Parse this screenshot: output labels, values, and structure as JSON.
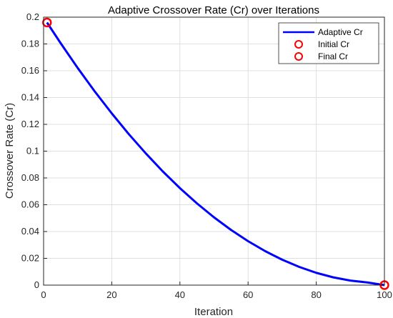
{
  "chart_data": {
    "type": "line",
    "title": "Adaptive Crossover Rate (Cr) over Iterations",
    "xlabel": "Iteration",
    "ylabel": "Crossover Rate (Cr)",
    "xlim": [
      0,
      100
    ],
    "ylim": [
      0,
      0.2
    ],
    "xticks": [
      0,
      20,
      40,
      60,
      80,
      100
    ],
    "yticks": [
      0,
      0.02,
      0.04,
      0.06,
      0.08,
      0.1,
      0.12,
      0.14,
      0.16,
      0.18,
      0.2
    ],
    "grid": true,
    "legend_position": "top-right",
    "series": [
      {
        "name": "Adaptive Cr",
        "style": "line",
        "color": "#0000ff",
        "x": [
          1,
          5,
          10,
          15,
          20,
          25,
          30,
          35,
          40,
          45,
          50,
          55,
          60,
          65,
          70,
          75,
          80,
          85,
          90,
          95,
          100
        ],
        "y": [
          0.196,
          0.1806,
          0.1621,
          0.1446,
          0.1282,
          0.1127,
          0.0983,
          0.0848,
          0.0724,
          0.061,
          0.0506,
          0.0412,
          0.0328,
          0.0254,
          0.019,
          0.0136,
          0.0092,
          0.0058,
          0.0034,
          0.002,
          0.0
        ]
      },
      {
        "name": "Initial Cr",
        "style": "marker",
        "color": "#ff0000",
        "x": [
          1
        ],
        "y": [
          0.196
        ]
      },
      {
        "name": "Final Cr",
        "style": "marker",
        "color": "#ff0000",
        "x": [
          100
        ],
        "y": [
          0.0
        ]
      }
    ]
  }
}
